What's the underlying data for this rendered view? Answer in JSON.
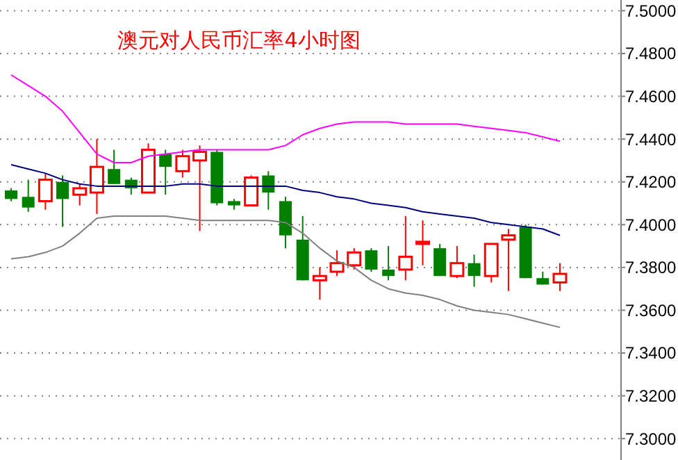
{
  "chart_data": {
    "type": "candlestick",
    "title": "澳元对人民币汇率4小时图",
    "categories": [
      null,
      null,
      null,
      null,
      null,
      null,
      null,
      null,
      null,
      null,
      null,
      null,
      null,
      null,
      null,
      null,
      null,
      null,
      null,
      null,
      null,
      null,
      null,
      null,
      null,
      null,
      null,
      null,
      null,
      null,
      null,
      null,
      null
    ],
    "ohlc": [
      [
        7.416,
        7.417,
        7.411,
        7.412
      ],
      [
        7.413,
        7.421,
        7.406,
        7.408
      ],
      [
        7.411,
        7.424,
        7.407,
        7.421
      ],
      [
        7.42,
        7.423,
        7.399,
        7.412
      ],
      [
        7.414,
        7.419,
        7.409,
        7.417
      ],
      [
        7.415,
        7.44,
        7.405,
        7.427
      ],
      [
        7.426,
        7.435,
        7.419,
        7.419
      ],
      [
        7.421,
        7.422,
        7.414,
        7.417
      ],
      [
        7.415,
        7.438,
        7.415,
        7.435
      ],
      [
        7.433,
        7.435,
        7.414,
        7.427
      ],
      [
        7.425,
        7.435,
        7.422,
        7.432
      ],
      [
        7.43,
        7.437,
        7.397,
        7.434
      ],
      [
        7.434,
        7.435,
        7.409,
        7.41
      ],
      [
        7.411,
        7.412,
        7.407,
        7.409
      ],
      [
        7.409,
        7.423,
        7.409,
        7.422
      ],
      [
        7.423,
        7.425,
        7.407,
        7.415
      ],
      [
        7.411,
        7.413,
        7.389,
        7.395
      ],
      [
        7.393,
        7.404,
        7.374,
        7.374
      ],
      [
        7.374,
        7.38,
        7.365,
        7.376
      ],
      [
        7.378,
        7.388,
        7.376,
        7.382
      ],
      [
        7.381,
        7.389,
        7.379,
        7.387
      ],
      [
        7.388,
        7.389,
        7.378,
        7.379
      ],
      [
        7.379,
        7.39,
        7.374,
        7.376
      ],
      [
        7.379,
        7.404,
        7.374,
        7.385
      ],
      [
        7.391,
        7.402,
        7.381,
        7.392
      ],
      [
        7.389,
        7.391,
        7.376,
        7.376
      ],
      [
        7.376,
        7.39,
        7.375,
        7.382
      ],
      [
        7.382,
        7.386,
        7.371,
        7.376
      ],
      [
        7.376,
        7.391,
        7.373,
        7.391
      ],
      [
        7.393,
        7.398,
        7.369,
        7.395
      ],
      [
        7.399,
        7.4,
        7.375,
        7.375
      ],
      [
        7.375,
        7.378,
        7.372,
        7.372
      ],
      [
        7.373,
        7.382,
        7.369,
        7.377
      ]
    ],
    "colors": [
      "#008000",
      "#008000",
      "#ff0000",
      "#008000",
      "#ff0000",
      "#ff0000",
      "#008000",
      "#008000",
      "#ff0000",
      "#008000",
      "#ff0000",
      "#ff0000",
      "#008000",
      "#008000",
      "#ff0000",
      "#008000",
      "#008000",
      "#008000",
      "#ff0000",
      "#ff0000",
      "#ff0000",
      "#008000",
      "#008000",
      "#ff0000",
      "#ff0000",
      "#008000",
      "#ff0000",
      "#008000",
      "#ff0000",
      "#ff0000",
      "#008000",
      "#008000",
      "#ff0000"
    ],
    "series": [
      {
        "type": "line",
        "color": "#ff00ff",
        "values": [
          7.47,
          7.465,
          7.46,
          7.453,
          7.443,
          7.433,
          7.429,
          7.429,
          7.432,
          7.433,
          7.434,
          7.435,
          7.435,
          7.435,
          7.435,
          7.435,
          7.437,
          7.442,
          7.445,
          7.447,
          7.448,
          7.448,
          7.448,
          7.447,
          7.447,
          7.447,
          7.447,
          7.446,
          7.445,
          7.444,
          7.443,
          7.441,
          7.439
        ]
      },
      {
        "type": "line",
        "color": "#000080",
        "values": [
          7.428,
          7.426,
          7.424,
          7.421,
          7.419,
          7.418,
          7.418,
          7.418,
          7.418,
          7.418,
          7.419,
          7.419,
          7.418,
          7.418,
          7.418,
          7.418,
          7.418,
          7.416,
          7.415,
          7.413,
          7.412,
          7.41,
          7.409,
          7.408,
          7.406,
          7.405,
          7.404,
          7.403,
          7.401,
          7.4,
          7.399,
          7.398,
          7.395
        ]
      },
      {
        "type": "line",
        "color": "#808080",
        "values": [
          7.384,
          7.385,
          7.387,
          7.39,
          7.396,
          7.403,
          7.404,
          7.404,
          7.404,
          7.404,
          7.403,
          7.402,
          7.402,
          7.402,
          7.402,
          7.402,
          7.401,
          7.396,
          7.389,
          7.383,
          7.38,
          7.374,
          7.37,
          7.368,
          7.367,
          7.365,
          7.362,
          7.36,
          7.359,
          7.358,
          7.356,
          7.354,
          7.352
        ]
      }
    ],
    "ylim": [
      7.29,
      7.505
    ],
    "yticks": [
      {
        "value": 7.3,
        "label": "7.3000"
      },
      {
        "value": 7.32,
        "label": "7.3200"
      },
      {
        "value": 7.34,
        "label": "7.3400"
      },
      {
        "value": 7.36,
        "label": "7.3600"
      },
      {
        "value": 7.38,
        "label": "7.3800"
      },
      {
        "value": 7.4,
        "label": "7.4000"
      },
      {
        "value": 7.42,
        "label": "7.4200"
      },
      {
        "value": 7.44,
        "label": "7.4400"
      },
      {
        "value": 7.46,
        "label": "7.4600"
      },
      {
        "value": 7.48,
        "label": "7.4800"
      },
      {
        "value": 7.5,
        "label": "7.5000"
      }
    ],
    "grid": "y",
    "tick_labels": "y",
    "line_style": "solid"
  }
}
